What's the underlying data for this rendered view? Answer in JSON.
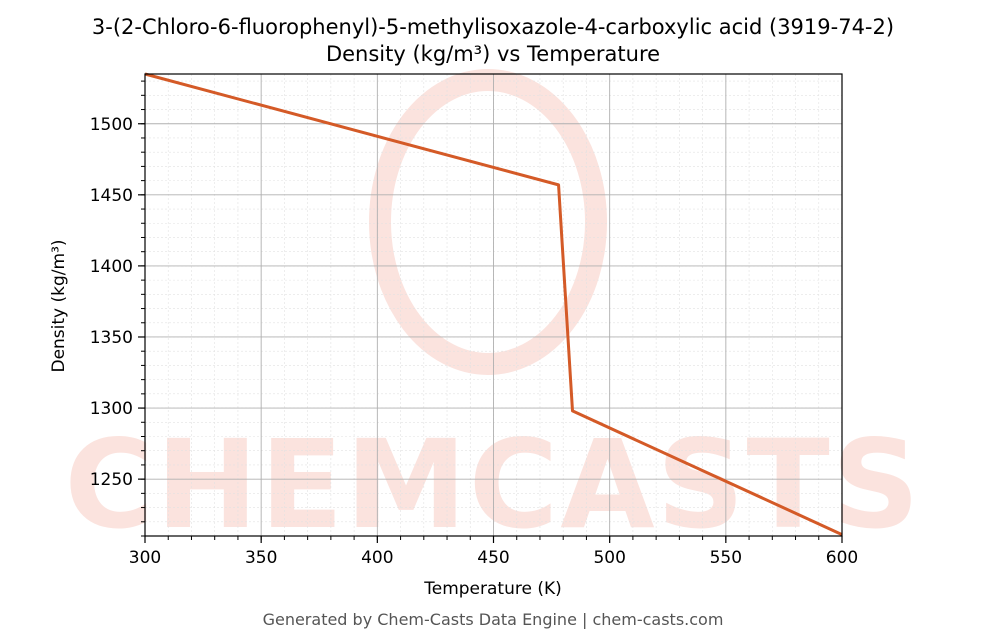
{
  "chart_data": {
    "type": "line",
    "title": "3-(2-Chloro-6-fluorophenyl)-5-methylisoxazole-4-carboxylic acid (3919-74-2)",
    "subtitle": "Density (kg/m³) vs Temperature",
    "xlabel": "Temperature (K)",
    "ylabel": "Density (kg/m³)",
    "xlim": [
      300,
      600
    ],
    "ylim": [
      1210,
      1535
    ],
    "x_ticks": [
      300,
      350,
      400,
      450,
      500,
      550,
      600
    ],
    "y_ticks": [
      1250,
      1300,
      1350,
      1400,
      1450,
      1500
    ],
    "grid": true,
    "series": [
      {
        "color": "#d45a27",
        "x": [
          300,
          478,
          484,
          600
        ],
        "y": [
          1535,
          1457,
          1298,
          1211
        ]
      }
    ]
  },
  "watermark": {
    "text": "CHEMCASTS",
    "color": "#fbe3de"
  },
  "footer": "Generated by Chem-Casts Data Engine | chem-casts.com"
}
